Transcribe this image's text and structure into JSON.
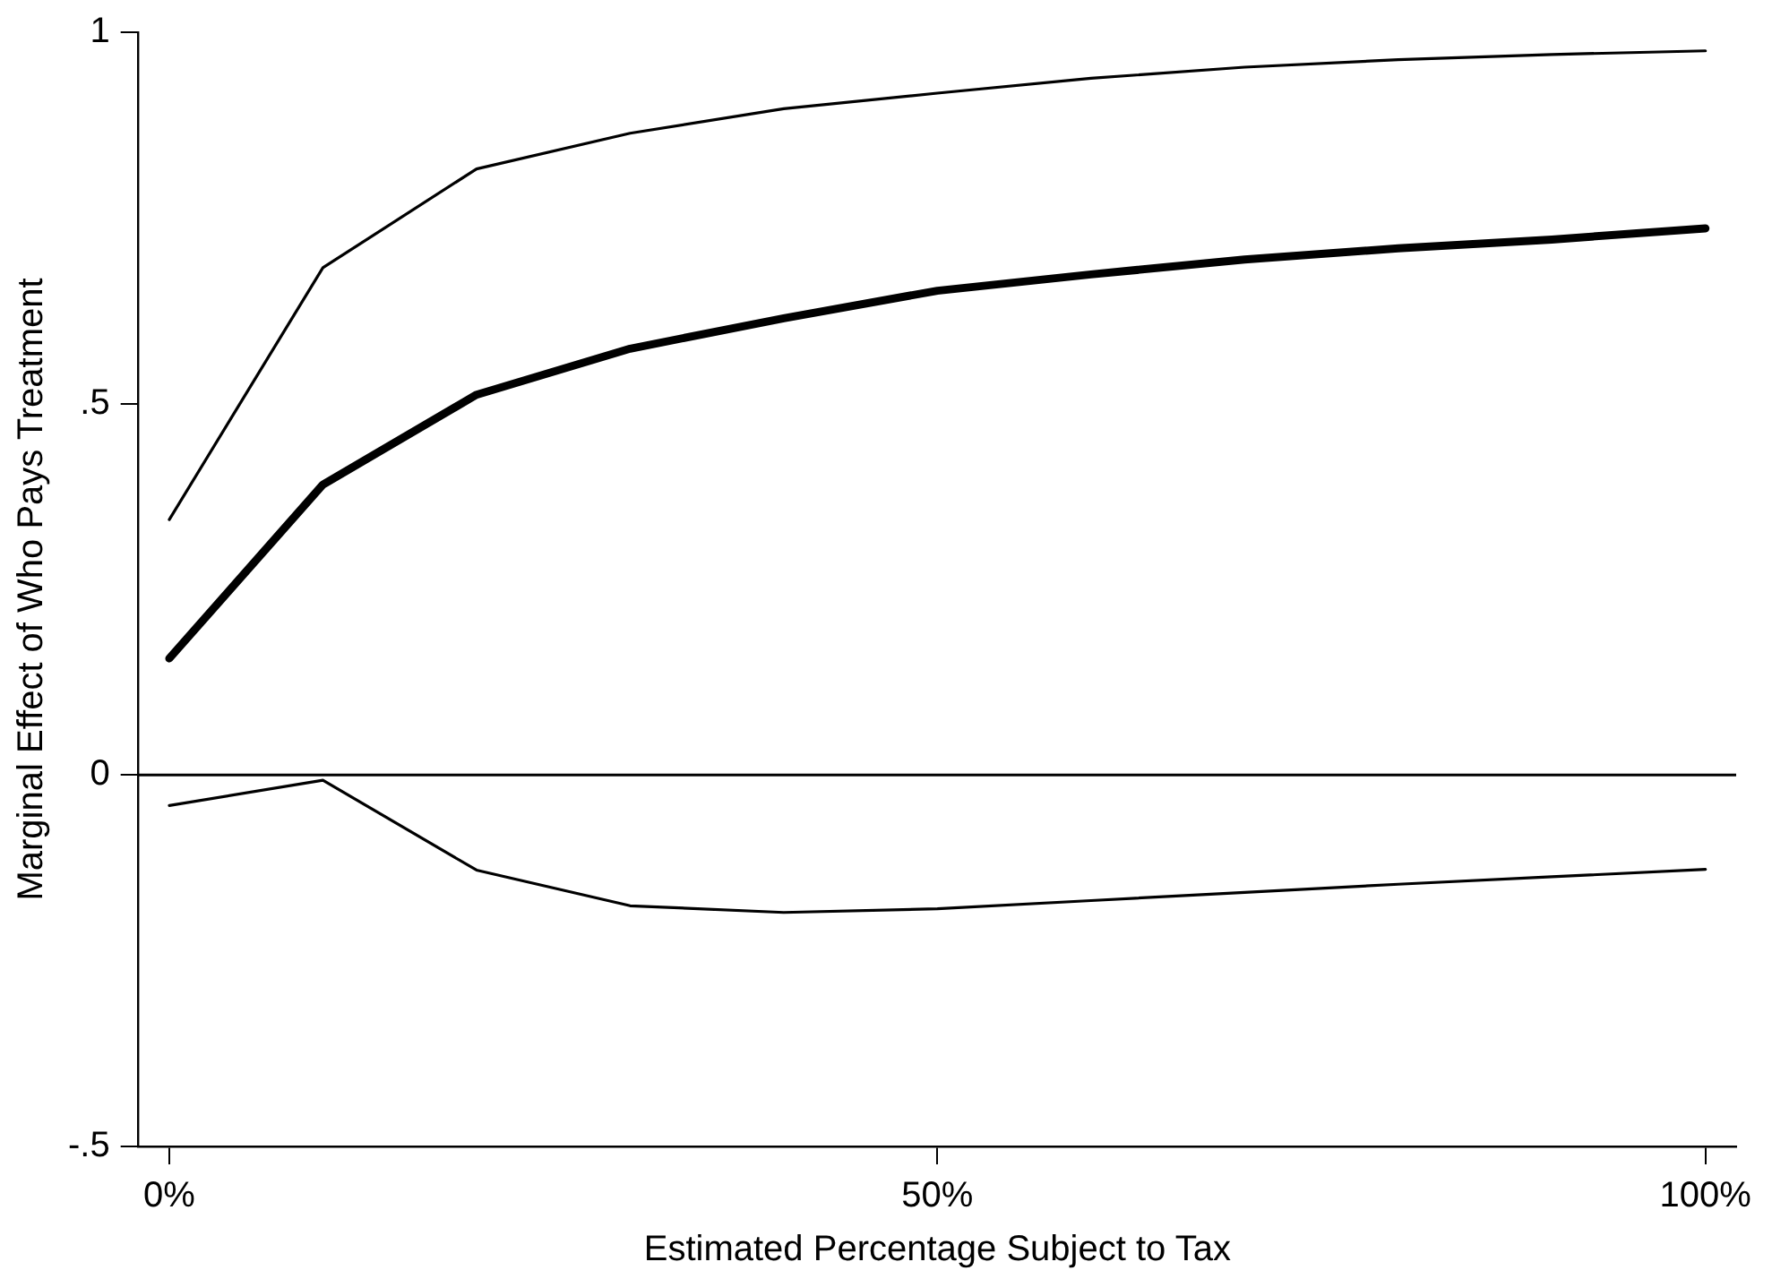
{
  "chart_data": {
    "type": "line",
    "xlabel": "Estimated Percentage Subject to Tax",
    "ylabel": "Marginal Effect of Who Pays Treatment",
    "x": [
      0,
      10,
      20,
      30,
      40,
      50,
      60,
      70,
      80,
      90,
      100
    ],
    "series": [
      {
        "color": "#000000",
        "values": [
          0.344,
          0.683,
          0.816,
          0.864,
          0.897,
          0.918,
          0.938,
          0.953,
          0.963,
          0.97,
          0.975
        ]
      },
      {
        "color": "#000000",
        "values": [
          0.157,
          0.391,
          0.512,
          0.574,
          0.615,
          0.652,
          0.674,
          0.694,
          0.709,
          0.721,
          0.736
        ]
      },
      {
        "color": "#000000",
        "values": [
          -0.041,
          -0.007,
          -0.128,
          -0.176,
          -0.185,
          -0.18,
          -0.169,
          -0.158,
          -0.147,
          -0.137,
          -0.127
        ]
      }
    ],
    "xlim": [
      -2,
      102
    ],
    "xticks": [
      {
        "value": 0,
        "label": "0%"
      },
      {
        "value": 50,
        "label": "50%"
      },
      {
        "value": 100,
        "label": "100%"
      }
    ],
    "ylim": [
      -0.5,
      1
    ],
    "yticks": [
      {
        "value": -0.5,
        "label": "-.5"
      },
      {
        "value": 0,
        "label": "0"
      },
      {
        "value": 0.5,
        "label": ".5"
      },
      {
        "value": 1,
        "label": "1"
      }
    ],
    "ref_lines": [
      {
        "axis": "y",
        "value": 0,
        "color": "#000000"
      }
    ],
    "grid": false,
    "legend": false,
    "marker": "none",
    "line_style": "solid"
  }
}
